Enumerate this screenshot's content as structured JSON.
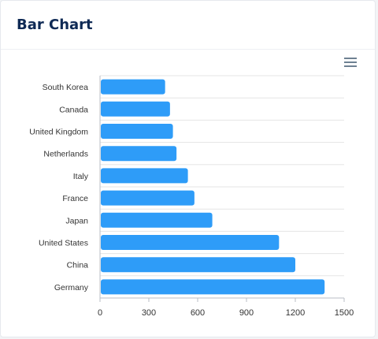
{
  "card": {
    "title": "Bar Chart"
  },
  "toolbar": {
    "menu_icon": "hamburger-menu-icon"
  },
  "colors": {
    "bar": "#2e9cf8",
    "title": "#0f2a55",
    "grid": "#e5e5e5",
    "axis": "#b9bec6"
  },
  "chart_data": {
    "type": "bar",
    "orientation": "horizontal",
    "title": "",
    "xlabel": "",
    "ylabel": "",
    "categories": [
      "South Korea",
      "Canada",
      "United Kingdom",
      "Netherlands",
      "Italy",
      "France",
      "Japan",
      "United States",
      "China",
      "Germany"
    ],
    "values": [
      400,
      430,
      448,
      470,
      540,
      580,
      690,
      1100,
      1200,
      1380
    ],
    "xlim": [
      0,
      1500
    ],
    "xticks": [
      0,
      300,
      600,
      900,
      1200,
      1500
    ],
    "grid": "horizontal row lines and vertical tick lines",
    "legend": "none"
  }
}
